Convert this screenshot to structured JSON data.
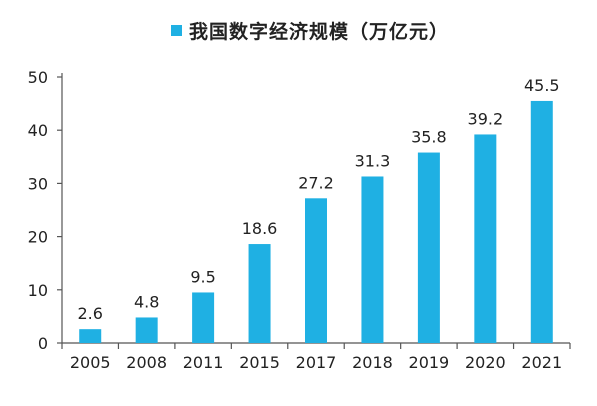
{
  "chart_data": {
    "type": "bar",
    "legend": "我国数字经济规模（万亿元）",
    "legend_position": "top",
    "categories": [
      "2005",
      "2008",
      "2011",
      "2015",
      "2017",
      "2018",
      "2019",
      "2020",
      "2021"
    ],
    "values": [
      2.6,
      4.8,
      9.5,
      18.6,
      27.2,
      31.3,
      35.8,
      39.2,
      45.5
    ],
    "value_labels": [
      "2.6",
      "4.8",
      "9.5",
      "18.6",
      "27.2",
      "31.3",
      "35.8",
      "39.2",
      "45.5"
    ],
    "ylim": [
      0,
      50
    ],
    "yticks": [
      0,
      10,
      20,
      30,
      40,
      50
    ],
    "ytick_labels": [
      "0",
      "10",
      "20",
      "30",
      "40",
      "50"
    ],
    "grid": false,
    "bar_color": "#1FB0E3"
  }
}
